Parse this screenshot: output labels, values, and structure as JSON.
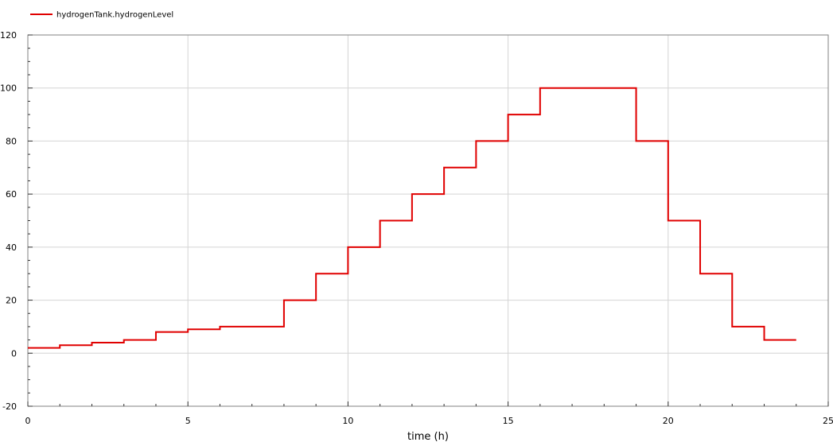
{
  "chart_data": {
    "type": "line",
    "step": true,
    "xlabel": "time (h)",
    "ylabel": "",
    "xlim": [
      0,
      25
    ],
    "ylim": [
      -20,
      120
    ],
    "xticks": [
      0,
      5,
      10,
      15,
      20,
      25
    ],
    "yticks": [
      -20,
      0,
      20,
      40,
      60,
      80,
      100,
      120
    ],
    "grid": true,
    "legend_position": "top-left",
    "series": [
      {
        "name": "hydrogenTank.hydrogenLevel",
        "color": "#e00000",
        "x": [
          0,
          1,
          2,
          3,
          4,
          5,
          6,
          7,
          8,
          9,
          10,
          11,
          12,
          13,
          14,
          15,
          16,
          17,
          18,
          19,
          20,
          21,
          22,
          23,
          24
        ],
        "values": [
          2,
          3,
          4,
          5,
          8,
          9,
          10,
          10,
          20,
          30,
          40,
          50,
          60,
          70,
          80,
          90,
          100,
          100,
          100,
          80,
          50,
          30,
          10,
          5,
          5
        ]
      }
    ]
  }
}
